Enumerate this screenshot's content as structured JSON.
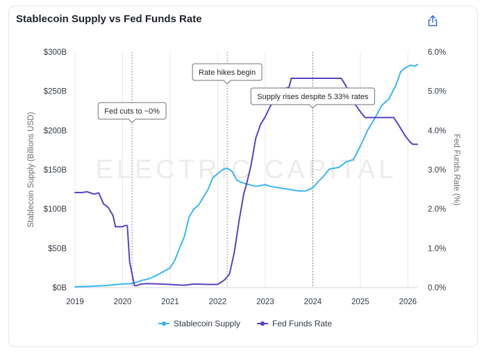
{
  "chart_data": {
    "type": "line",
    "title": "Stablecoin Supply vs Fed Funds Rate",
    "watermark": "ELECTRIC CAPITAL",
    "x_ticks": [
      "2019",
      "2020",
      "2021",
      "2022",
      "2023",
      "2024",
      "2025",
      "2026"
    ],
    "xlim": [
      2019.0,
      2026.2
    ],
    "y_left": {
      "label": "Stablecoin Supply (Billions USD)",
      "lim": [
        0,
        300
      ],
      "ticks": [
        0,
        50,
        100,
        150,
        200,
        250,
        300
      ],
      "tick_labels": [
        "$0B",
        "$50B",
        "$100B",
        "$150B",
        "$200B",
        "$250B",
        "$300B"
      ]
    },
    "y_right": {
      "label": "Fed Funds Rate (%)",
      "lim": [
        0,
        6
      ],
      "ticks": [
        0,
        1,
        2,
        3,
        4,
        5,
        6
      ],
      "tick_labels": [
        "0.0%",
        "1.0%",
        "2.0%",
        "3.0%",
        "4.0%",
        "5.0%",
        "6.0%"
      ]
    },
    "series": [
      {
        "name": "Stablecoin Supply",
        "axis": "left",
        "color": "#38b6f5",
        "points": [
          [
            2019.0,
            1
          ],
          [
            2019.3,
            1.5
          ],
          [
            2019.6,
            2.5
          ],
          [
            2019.9,
            4
          ],
          [
            2020.0,
            4.5
          ],
          [
            2020.2,
            5
          ],
          [
            2020.25,
            6
          ],
          [
            2020.4,
            9
          ],
          [
            2020.55,
            11
          ],
          [
            2020.7,
            15
          ],
          [
            2020.85,
            20
          ],
          [
            2021.0,
            25
          ],
          [
            2021.1,
            35
          ],
          [
            2021.2,
            50
          ],
          [
            2021.3,
            65
          ],
          [
            2021.4,
            90
          ],
          [
            2021.5,
            100
          ],
          [
            2021.6,
            105
          ],
          [
            2021.7,
            115
          ],
          [
            2021.8,
            125
          ],
          [
            2021.9,
            140
          ],
          [
            2022.0,
            145
          ],
          [
            2022.1,
            150
          ],
          [
            2022.2,
            152
          ],
          [
            2022.3,
            148
          ],
          [
            2022.4,
            137
          ],
          [
            2022.5,
            134
          ],
          [
            2022.6,
            132
          ],
          [
            2022.8,
            129
          ],
          [
            2023.0,
            131
          ],
          [
            2023.1,
            129
          ],
          [
            2023.3,
            127
          ],
          [
            2023.5,
            125
          ],
          [
            2023.7,
            123
          ],
          [
            2023.85,
            123
          ],
          [
            2024.0,
            127
          ],
          [
            2024.1,
            134
          ],
          [
            2024.2,
            140
          ],
          [
            2024.35,
            151
          ],
          [
            2024.55,
            153
          ],
          [
            2024.7,
            160
          ],
          [
            2024.85,
            163
          ],
          [
            2025.0,
            180
          ],
          [
            2025.15,
            200
          ],
          [
            2025.3,
            215
          ],
          [
            2025.45,
            232
          ],
          [
            2025.6,
            240
          ],
          [
            2025.75,
            258
          ],
          [
            2025.85,
            275
          ],
          [
            2025.95,
            280
          ],
          [
            2026.05,
            283
          ],
          [
            2026.15,
            282
          ],
          [
            2026.2,
            284
          ]
        ]
      },
      {
        "name": "Fed Funds Rate",
        "axis": "right",
        "color": "#5b3fc4",
        "points": [
          [
            2019.0,
            2.42
          ],
          [
            2019.15,
            2.42
          ],
          [
            2019.25,
            2.44
          ],
          [
            2019.4,
            2.38
          ],
          [
            2019.5,
            2.41
          ],
          [
            2019.6,
            2.13
          ],
          [
            2019.7,
            2.04
          ],
          [
            2019.8,
            1.83
          ],
          [
            2019.85,
            1.55
          ],
          [
            2020.0,
            1.55
          ],
          [
            2020.05,
            1.58
          ],
          [
            2020.1,
            1.58
          ],
          [
            2020.15,
            0.65
          ],
          [
            2020.25,
            0.05
          ],
          [
            2020.3,
            0.05
          ],
          [
            2020.35,
            0.08
          ],
          [
            2020.5,
            0.1
          ],
          [
            2020.8,
            0.09
          ],
          [
            2021.0,
            0.08
          ],
          [
            2021.1,
            0.07
          ],
          [
            2021.3,
            0.06
          ],
          [
            2021.5,
            0.09
          ],
          [
            2021.8,
            0.08
          ],
          [
            2022.0,
            0.08
          ],
          [
            2022.15,
            0.2
          ],
          [
            2022.25,
            0.35
          ],
          [
            2022.35,
            0.9
          ],
          [
            2022.45,
            1.7
          ],
          [
            2022.55,
            2.4
          ],
          [
            2022.6,
            2.6
          ],
          [
            2022.7,
            3.1
          ],
          [
            2022.8,
            3.8
          ],
          [
            2022.9,
            4.15
          ],
          [
            2023.0,
            4.35
          ],
          [
            2023.1,
            4.6
          ],
          [
            2023.2,
            4.8
          ],
          [
            2023.35,
            5.05
          ],
          [
            2023.5,
            5.1
          ],
          [
            2023.55,
            5.33
          ],
          [
            2023.8,
            5.33
          ],
          [
            2024.0,
            5.33
          ],
          [
            2024.3,
            5.33
          ],
          [
            2024.6,
            5.33
          ],
          [
            2024.7,
            5.13
          ],
          [
            2024.8,
            4.83
          ],
          [
            2024.9,
            4.65
          ],
          [
            2025.0,
            4.48
          ],
          [
            2025.1,
            4.33
          ],
          [
            2025.3,
            4.33
          ],
          [
            2025.5,
            4.33
          ],
          [
            2025.7,
            4.33
          ],
          [
            2025.8,
            4.15
          ],
          [
            2025.85,
            4.05
          ],
          [
            2025.95,
            3.85
          ],
          [
            2026.05,
            3.7
          ],
          [
            2026.1,
            3.65
          ],
          [
            2026.2,
            3.65
          ]
        ]
      }
    ],
    "annotations": [
      {
        "x": 2020.2,
        "label": "Fed cuts to ~0%"
      },
      {
        "x": 2022.2,
        "label": "Rate hikes begin"
      },
      {
        "x": 2024.0,
        "label": "Supply rises despite 5.33% rates"
      }
    ],
    "legend_position": "bottom"
  }
}
